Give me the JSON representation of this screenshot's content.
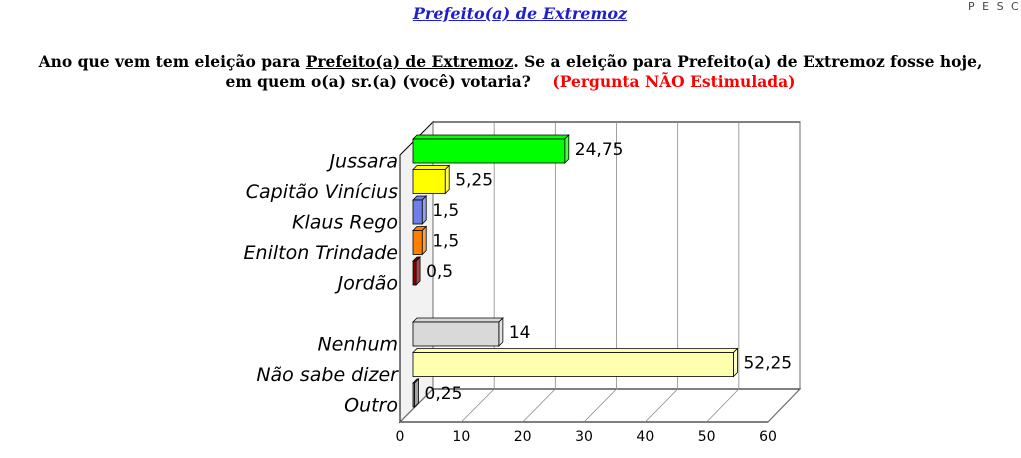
{
  "header": {
    "title": "Prefeito(a) de Extremoz",
    "corner": "P E S C"
  },
  "question": {
    "part1": "Ano que vem tem eleição para ",
    "part2": "Prefeito(a) de Extremoz",
    "part3": ". Se a eleição para Prefeito(a) de Extremoz fosse hoje,",
    "part4": "em quem o(a) sr.(a) (você) votaria?",
    "note": "(Pergunta NÃO Estimulada)"
  },
  "chart_data": {
    "type": "bar3d-horizontal",
    "categories": [
      "Jussara",
      "Capitão Vinícius",
      "Klaus Rego",
      "Enilton Trindade",
      "Jordão",
      null,
      "Nenhum",
      "Não sabe dizer",
      "Outro"
    ],
    "values": [
      24.75,
      5.25,
      1.5,
      1.5,
      0.5,
      null,
      14,
      52.25,
      0.25
    ],
    "value_labels": [
      "24,75",
      "5,25",
      "1,5",
      "1,5",
      "0,5",
      null,
      "14",
      "52,25",
      "0,25"
    ],
    "colors": [
      "#00ff00",
      "#ffff00",
      "#6f7fe8",
      "#ff8000",
      "#8b0000",
      null,
      "#d9d9d9",
      "#ffffb0",
      "#808080"
    ],
    "xlim": [
      0,
      60
    ],
    "xticks": [
      0,
      10,
      20,
      30,
      40,
      50,
      60
    ],
    "grid": true
  }
}
